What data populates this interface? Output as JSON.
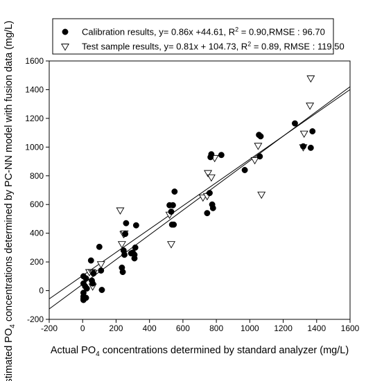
{
  "chart_data": {
    "type": "scatter",
    "xlabel_parts": [
      "Actual PO",
      "4",
      " concentrations determined by standard analyzer (mg/L)"
    ],
    "ylabel_parts": [
      "Estimated PO",
      "4",
      " concentrations determined by PC-NN model with fusion data (mg/L)"
    ],
    "xlim": [
      -200,
      1600
    ],
    "ylim": [
      -200,
      1600
    ],
    "xticks": [
      -200,
      0,
      200,
      400,
      600,
      800,
      1000,
      1200,
      1400,
      1600
    ],
    "yticks": [
      -200,
      0,
      200,
      400,
      600,
      800,
      1000,
      1200,
      1400,
      1600
    ],
    "grid": false,
    "legend_position": "top",
    "series": [
      {
        "label_parts": [
          "Calibration results, y= 0.86x +44.61, R",
          "2",
          " = 0.90,RMSE : 96.70"
        ],
        "marker": "filled-circle",
        "color": "#000000",
        "fit": {
          "slope": 0.86,
          "intercept": 44.61
        },
        "points": [
          [
            5,
            100
          ],
          [
            5,
            50
          ],
          [
            5,
            -15
          ],
          [
            5,
            -40
          ],
          [
            5,
            -55
          ],
          [
            5,
            -65
          ],
          [
            15,
            30
          ],
          [
            20,
            -50
          ],
          [
            20,
            85
          ],
          [
            25,
            15
          ],
          [
            50,
            210
          ],
          [
            55,
            70
          ],
          [
            60,
            50
          ],
          [
            65,
            120
          ],
          [
            100,
            305
          ],
          [
            110,
            140
          ],
          [
            115,
            5
          ],
          [
            235,
            160
          ],
          [
            240,
            130
          ],
          [
            245,
            280
          ],
          [
            250,
            250
          ],
          [
            255,
            395
          ],
          [
            260,
            470
          ],
          [
            290,
            260
          ],
          [
            300,
            265
          ],
          [
            310,
            225
          ],
          [
            310,
            250
          ],
          [
            315,
            300
          ],
          [
            320,
            455
          ],
          [
            520,
            595
          ],
          [
            530,
            550
          ],
          [
            535,
            460
          ],
          [
            540,
            595
          ],
          [
            545,
            460
          ],
          [
            550,
            690
          ],
          [
            745,
            540
          ],
          [
            760,
            680
          ],
          [
            765,
            930
          ],
          [
            770,
            950
          ],
          [
            775,
            600
          ],
          [
            780,
            575
          ],
          [
            830,
            945
          ],
          [
            970,
            840
          ],
          [
            1055,
            1085
          ],
          [
            1060,
            935
          ],
          [
            1065,
            1075
          ],
          [
            1270,
            1165
          ],
          [
            1320,
            1005
          ],
          [
            1365,
            995
          ],
          [
            1375,
            1110
          ]
        ]
      },
      {
        "label_parts": [
          "Test sample results, y= 0.81x + 104.73, R",
          "2",
          " = 0.89, RMSE : 119.50"
        ],
        "marker": "open-triangle-down",
        "color": "#000000",
        "fit": {
          "slope": 0.81,
          "intercept": 104.73
        },
        "points": [
          [
            40,
            130
          ],
          [
            55,
            130
          ],
          [
            60,
            30
          ],
          [
            65,
            125
          ],
          [
            110,
            185
          ],
          [
            225,
            560
          ],
          [
            235,
            325
          ],
          [
            245,
            395
          ],
          [
            250,
            400
          ],
          [
            520,
            530
          ],
          [
            530,
            325
          ],
          [
            720,
            650
          ],
          [
            745,
            660
          ],
          [
            750,
            820
          ],
          [
            770,
            790
          ],
          [
            790,
            925
          ],
          [
            1030,
            910
          ],
          [
            1050,
            1010
          ],
          [
            1070,
            670
          ],
          [
            1320,
            1000
          ],
          [
            1325,
            1095
          ],
          [
            1360,
            1290
          ],
          [
            1365,
            1480
          ]
        ]
      }
    ]
  }
}
